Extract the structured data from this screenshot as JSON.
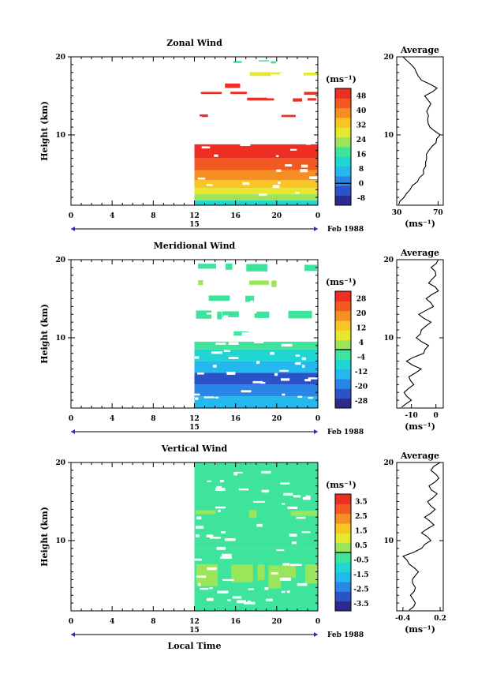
{
  "colors": {
    "cmap": [
      "#2c2a8c",
      "#2c52c8",
      "#2a86e6",
      "#23b8ee",
      "#1fd6d2",
      "#3ee39c",
      "#9be55a",
      "#e6e82e",
      "#f8c522",
      "#f58f23",
      "#f25a22",
      "#ee2e23"
    ],
    "axis": "#000000",
    "line": "#000000"
  },
  "shared": {
    "ylabel": "Height (km)",
    "xlabel": "Local Time",
    "x_ticks": [
      "0",
      "4",
      "8",
      "12",
      "16",
      "20",
      "0"
    ],
    "date_center": "15",
    "date_right": "Feb 1988",
    "unit_label": "(ms⁻¹)",
    "profile_title": "Average"
  },
  "chart_data": [
    {
      "type": "heatmap",
      "title": "Zonal Wind",
      "xlim": [
        0,
        24
      ],
      "ylim": [
        1,
        20
      ],
      "y_ticks": [
        "10",
        "20"
      ],
      "data_start_hour": 12,
      "colorbar_ticks": [
        "48",
        "40",
        "32",
        "24",
        "16",
        "8",
        "0",
        "-8"
      ],
      "colorbar_range": [
        -12,
        52
      ],
      "zero_level": 0,
      "field": [
        {
          "y_from": 1,
          "y_to": 1.6,
          "value": 12
        },
        {
          "y_from": 1.6,
          "y_to": 2.4,
          "value": 20
        },
        {
          "y_from": 2.4,
          "y_to": 3.2,
          "value": 26
        },
        {
          "y_from": 3.2,
          "y_to": 4.2,
          "value": 33
        },
        {
          "y_from": 4.2,
          "y_to": 5.5,
          "value": 40
        },
        {
          "y_from": 5.5,
          "y_to": 7,
          "value": 44
        },
        {
          "y_from": 7,
          "y_to": 8.8,
          "value": 48
        },
        {
          "y_from": 8.8,
          "y_to": 20,
          "value": null
        }
      ],
      "patches": [
        {
          "y_from": 16,
          "y_to": 16.6,
          "value": 48
        },
        {
          "y_from": 14.3,
          "y_to": 14.8,
          "value": 48
        },
        {
          "y_from": 12.2,
          "y_to": 12.7,
          "value": 48
        },
        {
          "y_from": 15.3,
          "y_to": 15.7,
          "value": 48
        },
        {
          "y_from": 17.6,
          "y_to": 18.1,
          "value": 28
        },
        {
          "y_from": 19.3,
          "y_to": 19.6,
          "value": 18
        }
      ],
      "profile": {
        "xlim": [
          30,
          75
        ],
        "x_ticks": [
          "30",
          "70"
        ],
        "unit_label": "(ms⁻¹)",
        "heights": [
          1,
          2,
          3,
          4,
          5,
          6,
          7,
          8,
          9,
          10,
          11,
          12,
          13,
          14,
          15,
          16,
          17,
          18,
          19,
          20
        ],
        "values": [
          32,
          37,
          43,
          50,
          56,
          58,
          59,
          61,
          68,
          72,
          62,
          60,
          59,
          63,
          57,
          69,
          54,
          49,
          44,
          36
        ]
      }
    },
    {
      "type": "heatmap",
      "title": "Meridional Wind",
      "xlim": [
        0,
        24
      ],
      "ylim": [
        1,
        20
      ],
      "y_ticks": [
        "10",
        "20"
      ],
      "data_start_hour": 12,
      "colorbar_ticks": [
        "28",
        "20",
        "12",
        "4",
        "-4",
        "-12",
        "-20",
        "-28"
      ],
      "colorbar_range": [
        -32,
        32
      ],
      "zero_level": 0,
      "field": [
        {
          "y_from": 1,
          "y_to": 2.5,
          "value": -16
        },
        {
          "y_from": 2.5,
          "y_to": 4,
          "value": -20
        },
        {
          "y_from": 4,
          "y_to": 5.5,
          "value": -22
        },
        {
          "y_from": 5.5,
          "y_to": 7,
          "value": -14
        },
        {
          "y_from": 7,
          "y_to": 8.5,
          "value": -9
        },
        {
          "y_from": 8.5,
          "y_to": 9.5,
          "value": -4
        },
        {
          "y_from": 9.5,
          "y_to": 20,
          "value": null
        }
      ],
      "patches": [
        {
          "y_from": 10,
          "y_to": 11,
          "value": -3
        },
        {
          "y_from": 12,
          "y_to": 13.5,
          "value": -3
        },
        {
          "y_from": 14.5,
          "y_to": 15.5,
          "value": -5
        },
        {
          "y_from": 16.5,
          "y_to": 17.5,
          "value": 2
        },
        {
          "y_from": 18.5,
          "y_to": 19.5,
          "value": -2
        }
      ],
      "profile": {
        "xlim": [
          -16,
          3
        ],
        "x_ticks": [
          "-10",
          "0"
        ],
        "unit_label": "(ms⁻¹)",
        "heights": [
          1,
          2,
          3,
          4,
          5,
          6,
          7,
          8,
          9,
          10,
          11,
          12,
          13,
          14,
          15,
          16,
          17,
          18,
          19,
          20
        ],
        "values": [
          -14,
          -10,
          -13,
          -9,
          -11,
          -6,
          -12,
          -5,
          -3,
          -8,
          -6,
          -2,
          -7,
          -1,
          -4,
          1,
          -3,
          0,
          -2,
          1
        ]
      }
    },
    {
      "type": "heatmap",
      "title": "Vertical Wind",
      "xlim": [
        0,
        24
      ],
      "ylim": [
        1,
        20
      ],
      "y_ticks": [
        "10",
        "20"
      ],
      "data_start_hour": 12,
      "colorbar_ticks": [
        "3.5",
        "2.5",
        "1.5",
        "0.5",
        "-0.5",
        "-1.5",
        "-2.5",
        "-3.5"
      ],
      "colorbar_range": [
        -4,
        4
      ],
      "zero_level": 0,
      "field": [
        {
          "y_from": 1,
          "y_to": 9,
          "value": -0.6
        },
        {
          "y_from": 9,
          "y_to": 20,
          "value": -0.1
        }
      ],
      "patches": [
        {
          "y_from": 4,
          "y_to": 7,
          "value": 0.2
        },
        {
          "y_from": 13,
          "y_to": 14,
          "value": 0.4
        }
      ],
      "profile": {
        "xlim": [
          -0.5,
          0.25
        ],
        "x_ticks": [
          "-0.4",
          "0.2"
        ],
        "unit_label": "(ms⁻¹)",
        "heights": [
          1,
          2,
          3,
          4,
          5,
          6,
          7,
          8,
          9,
          10,
          11,
          12,
          13,
          14,
          15,
          16,
          17,
          18,
          19,
          20
        ],
        "values": [
          -0.3,
          -0.2,
          -0.28,
          -0.2,
          -0.25,
          -0.15,
          -0.3,
          -0.4,
          -0.1,
          0.05,
          -0.1,
          0.1,
          -0.05,
          0.12,
          0.0,
          0.15,
          0.02,
          0.18,
          0.05,
          0.2
        ]
      }
    }
  ]
}
